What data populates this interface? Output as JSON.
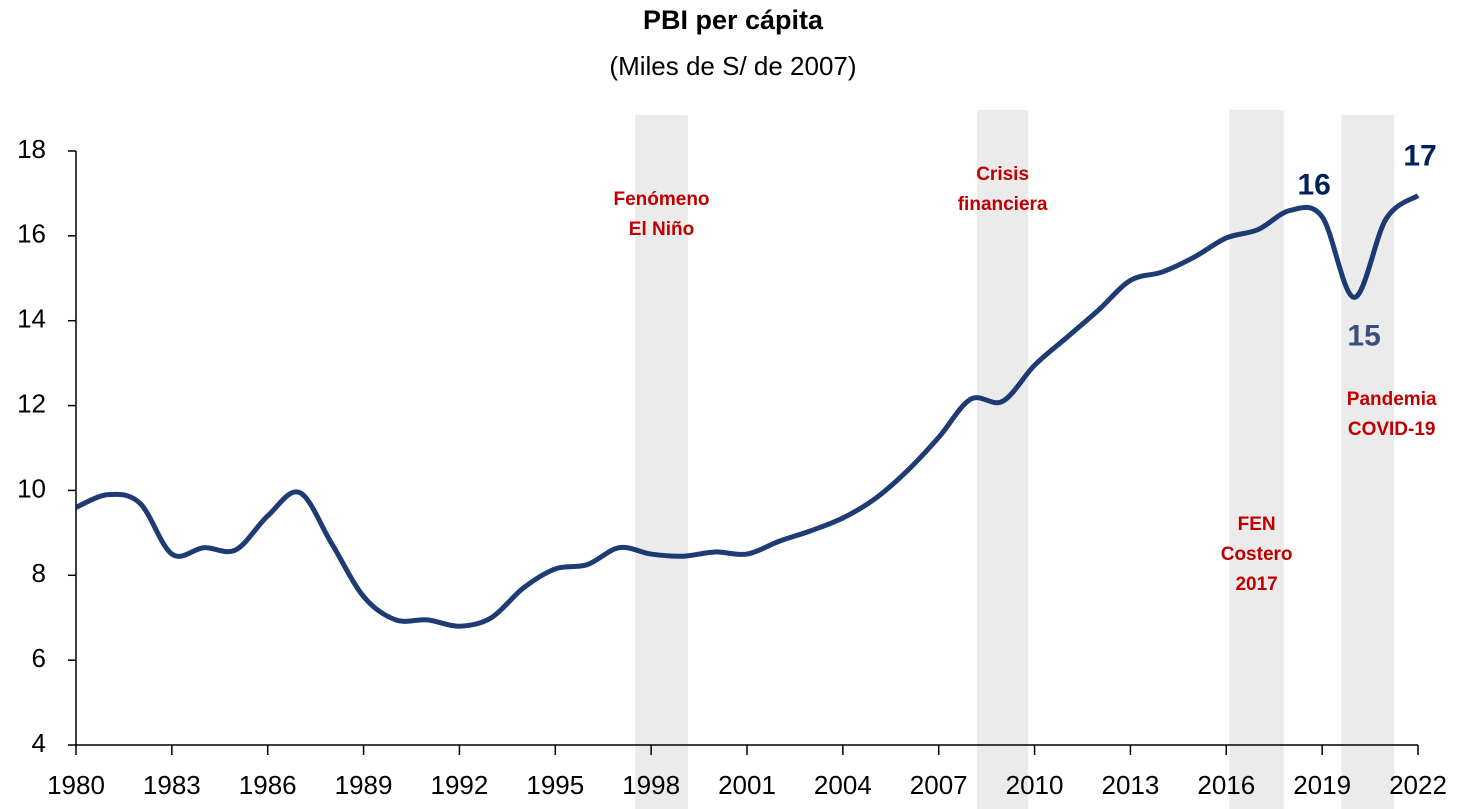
{
  "chart_data": {
    "type": "line",
    "title": "PBI per cápita",
    "subtitle": "(Miles de S/ de 2007)",
    "x": [
      1980,
      1981,
      1982,
      1983,
      1984,
      1985,
      1986,
      1987,
      1988,
      1989,
      1990,
      1991,
      1992,
      1993,
      1994,
      1995,
      1996,
      1997,
      1998,
      1999,
      2000,
      2001,
      2002,
      2003,
      2004,
      2005,
      2006,
      2007,
      2008,
      2009,
      2010,
      2011,
      2012,
      2013,
      2014,
      2015,
      2016,
      2017,
      2018,
      2019,
      2020,
      2021,
      2022
    ],
    "series": [
      {
        "name": "PBI per cápita",
        "color": "#002060",
        "values": [
          9.6,
          9.9,
          9.7,
          8.5,
          8.65,
          8.6,
          9.4,
          9.95,
          8.75,
          7.5,
          6.95,
          6.95,
          6.8,
          7.0,
          7.7,
          8.15,
          8.25,
          8.65,
          8.5,
          8.45,
          8.55,
          8.5,
          8.8,
          9.05,
          9.35,
          9.8,
          10.45,
          11.25,
          12.15,
          12.1,
          12.95,
          13.6,
          14.25,
          14.95,
          15.15,
          15.5,
          15.95,
          16.15,
          16.6,
          16.45,
          14.55,
          16.4,
          16.95
        ],
        "value_labels": [
          null,
          null,
          null,
          null,
          null,
          null,
          null,
          null,
          null,
          null,
          null,
          null,
          null,
          null,
          null,
          null,
          null,
          null,
          null,
          null,
          null,
          null,
          null,
          null,
          null,
          null,
          null,
          null,
          null,
          null,
          null,
          null,
          null,
          null,
          null,
          null,
          null,
          null,
          null,
          "16",
          "15",
          null,
          "17"
        ]
      }
    ],
    "shaded_periods": [
      {
        "start": 1997.5,
        "end": 1999.15,
        "label": "Fenómeno\nEl Niño"
      },
      {
        "start": 2008.2,
        "end": 2009.8,
        "label": "Crisis\nfinanciera"
      },
      {
        "start": 2016.1,
        "end": 2017.8,
        "label": "FEN\nCostero\n2017"
      },
      {
        "start": 2019.6,
        "end": 2021.25,
        "label": "Pandemia\nCOVID-19"
      }
    ],
    "xlim": [
      1980,
      2022
    ],
    "xticks": [
      1980,
      1983,
      1986,
      1989,
      1992,
      1995,
      1998,
      2001,
      2004,
      2007,
      2010,
      2013,
      2016,
      2019,
      2022
    ],
    "ylim": [
      4,
      18
    ],
    "yticks": [
      4,
      6,
      8,
      10,
      12,
      14,
      16,
      18
    ],
    "grid": false
  }
}
